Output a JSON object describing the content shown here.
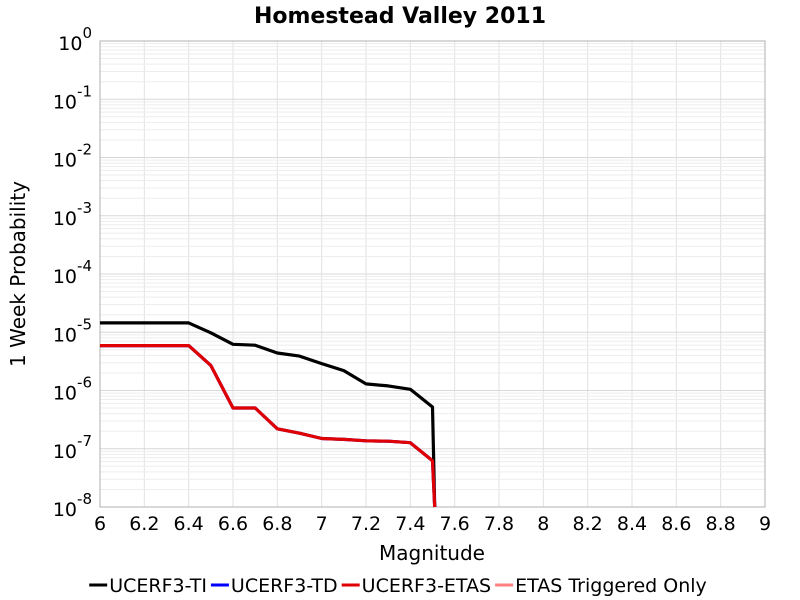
{
  "chart_data": {
    "type": "line",
    "title": "Homestead Valley 2011",
    "xlabel": "Magnitude",
    "ylabel": "1 Week Probability",
    "xlim": [
      6,
      9
    ],
    "ylim": [
      1e-08,
      1
    ],
    "yscale": "log",
    "x_ticks": [
      "6",
      "6.2",
      "6.4",
      "6.6",
      "6.8",
      "7",
      "7.2",
      "7.4",
      "7.6",
      "7.8",
      "8",
      "8.2",
      "8.4",
      "8.6",
      "8.8",
      "9"
    ],
    "y_ticks": [
      {
        "base": "10",
        "exp": "0"
      },
      {
        "base": "10",
        "exp": "-1"
      },
      {
        "base": "10",
        "exp": "-2"
      },
      {
        "base": "10",
        "exp": "-3"
      },
      {
        "base": "10",
        "exp": "-4"
      },
      {
        "base": "10",
        "exp": "-5"
      },
      {
        "base": "10",
        "exp": "-6"
      },
      {
        "base": "10",
        "exp": "-7"
      },
      {
        "base": "10",
        "exp": "-8"
      }
    ],
    "grid": true,
    "legend_position": "bottom",
    "series": [
      {
        "name": "UCERF3-TI",
        "color": "#000000",
        "x": [
          6.0,
          6.1,
          6.2,
          6.3,
          6.4,
          6.5,
          6.6,
          6.7,
          6.8,
          6.9,
          7.0,
          7.1,
          7.2,
          7.3,
          7.4,
          7.5,
          7.51
        ],
        "y": [
          1.45e-05,
          1.45e-05,
          1.45e-05,
          1.45e-05,
          1.45e-05,
          9.8e-06,
          6.2e-06,
          6e-06,
          4.4e-06,
          3.9e-06,
          2.9e-06,
          2.2e-06,
          1.3e-06,
          1.2e-06,
          1.05e-06,
          5.2e-07,
          1e-08
        ]
      },
      {
        "name": "UCERF3-TD",
        "color": "#0000ff",
        "x": [
          6.0,
          6.1,
          6.2,
          6.3,
          6.4,
          6.5,
          6.6,
          6.7,
          6.8,
          6.9,
          7.0,
          7.1,
          7.2,
          7.3,
          7.4,
          7.5,
          7.51
        ],
        "y": [
          5.9e-06,
          5.9e-06,
          5.9e-06,
          5.9e-06,
          5.9e-06,
          2.7e-06,
          5e-07,
          5e-07,
          2.2e-07,
          1.85e-07,
          1.5e-07,
          1.45e-07,
          1.37e-07,
          1.35e-07,
          1.27e-07,
          6.2e-08,
          1e-08
        ]
      },
      {
        "name": "UCERF3-ETAS",
        "color": "#e00000",
        "x": [
          6.0,
          6.1,
          6.2,
          6.3,
          6.4,
          6.5,
          6.6,
          6.7,
          6.8,
          6.9,
          7.0,
          7.1,
          7.2,
          7.3,
          7.4,
          7.5,
          7.51
        ],
        "y": [
          5.9e-06,
          5.9e-06,
          5.9e-06,
          5.9e-06,
          5.9e-06,
          2.7e-06,
          5e-07,
          5e-07,
          2.2e-07,
          1.85e-07,
          1.5e-07,
          1.45e-07,
          1.37e-07,
          1.35e-07,
          1.27e-07,
          6.2e-08,
          1e-08
        ]
      },
      {
        "name": "ETAS Triggered Only",
        "color": "#ff8080",
        "x": [],
        "y": []
      }
    ]
  }
}
